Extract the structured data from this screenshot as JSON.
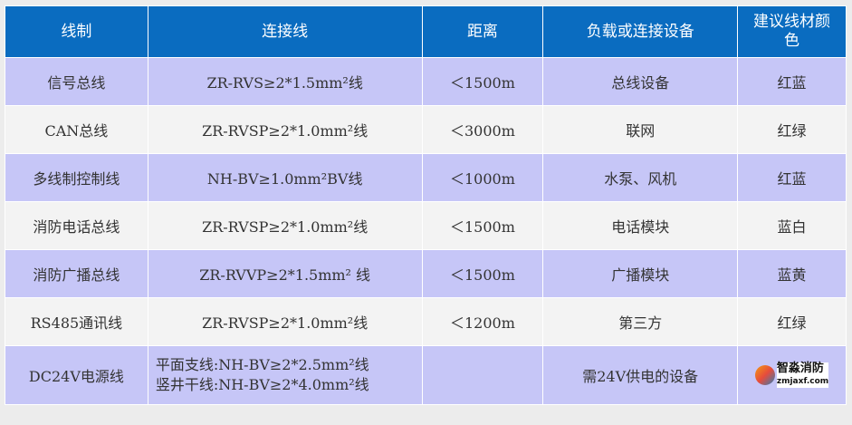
{
  "headers": [
    "线制",
    "连接线",
    "距离",
    "负载或连接设备",
    "建议线材颜色"
  ],
  "rows": [
    {
      "type": "信号总线",
      "cable": "ZR-RVS≥2*1.5mm²线",
      "distance": "＜1500m",
      "device": "总线设备",
      "color": "红蓝"
    },
    {
      "type": "CAN总线",
      "cable": "ZR-RVSP≥2*1.0mm²线",
      "distance": "＜3000m",
      "device": "联网",
      "color": "红绿"
    },
    {
      "type": "多线制控制线",
      "cable": "NH-BV≥1.0mm²BV线",
      "distance": "＜1000m",
      "device": "水泵、风机",
      "color": "红蓝"
    },
    {
      "type": "消防电话总线",
      "cable": "ZR-RVSP≥2*1.0mm²线",
      "distance": "＜1500m",
      "device": "电话模块",
      "color": "蓝白"
    },
    {
      "type": "消防广播总线",
      "cable": "ZR-RVVP≥2*1.5mm² 线",
      "distance": "＜1500m",
      "device": "广播模块",
      "color": "蓝黄"
    },
    {
      "type": "RS485通讯线",
      "cable": "ZR-RVSP≥2*1.0mm²线",
      "distance": "＜1200m",
      "device": "第三方",
      "color": "红绿"
    }
  ],
  "last_row": {
    "type": "DC24V电源线",
    "cable_lines": [
      "平面支线:NH-BV≥2*2.5mm²线",
      "竖井干线:NH-BV≥2*4.0mm²线"
    ],
    "distance": "",
    "device": "需24V供电的设备"
  },
  "watermark": {
    "name": "智淼消防",
    "url": "zmjaxf.com"
  },
  "colors": {
    "header": "#0a6cc0",
    "row_alt": "#c6c6f7",
    "row": "#f3f3f3"
  }
}
